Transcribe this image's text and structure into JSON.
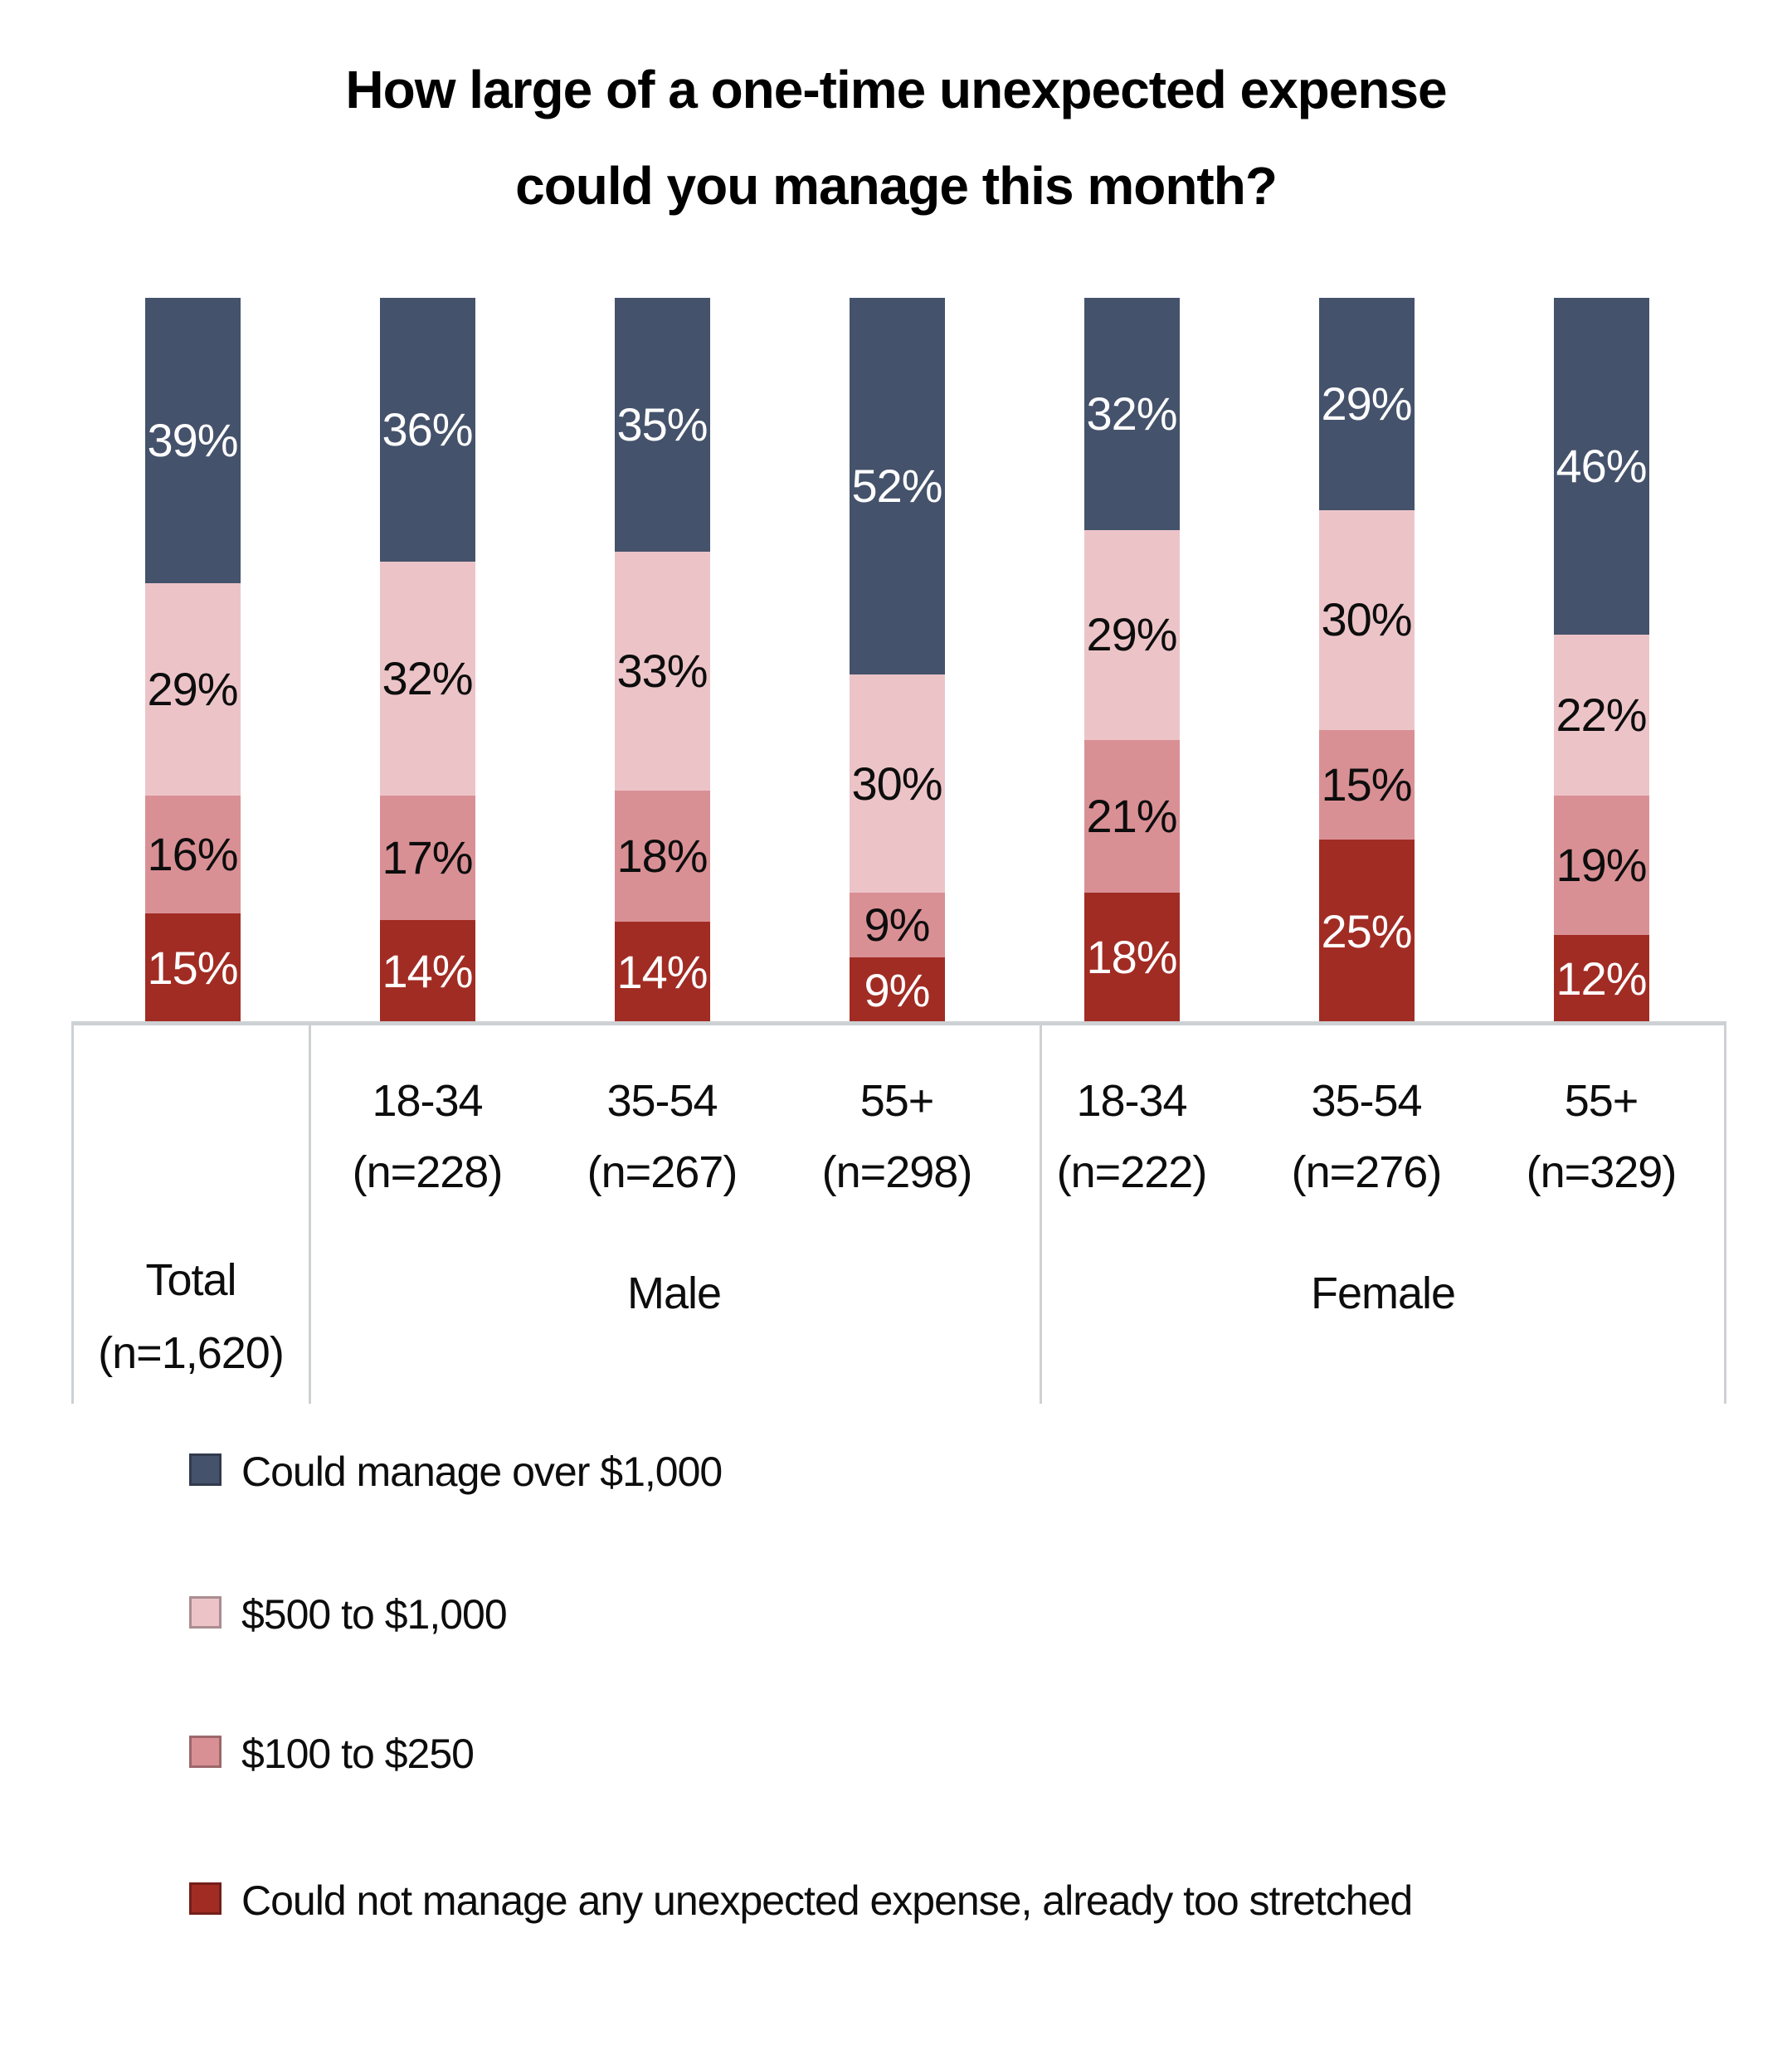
{
  "chart_data": {
    "type": "bar",
    "stacked": true,
    "title": "How large of a one-time unexpected expense could you manage this month?",
    "title_lines": [
      "How large of a one-time unexpected expense",
      "could you manage this month?"
    ],
    "value_suffix": "%",
    "ylim": [
      0,
      100
    ],
    "grid": false,
    "legend_position": "bottom-left",
    "series": [
      {
        "name": "Could manage over $1,000",
        "color": "#45526B",
        "label_color": "#FFFFFF",
        "values": [
          39,
          36,
          35,
          52,
          32,
          29,
          46
        ]
      },
      {
        "name": "$500 to $1,000",
        "color": "#ECC4C8",
        "label_color": "#0D0D0D",
        "values": [
          29,
          32,
          33,
          30,
          29,
          30,
          22
        ]
      },
      {
        "name": "$100 to $250",
        "color": "#D99095",
        "label_color": "#0D0D0D",
        "values": [
          16,
          17,
          18,
          9,
          21,
          15,
          19
        ]
      },
      {
        "name": "Could not manage any unexpected expense, already too stretched",
        "color": "#A12C24",
        "label_color": "#FFFFFF",
        "values": [
          15,
          14,
          14,
          9,
          18,
          25,
          12
        ]
      }
    ],
    "categories": [
      {
        "age_label": "",
        "n_label": "",
        "group": "Total"
      },
      {
        "age_label": "18-34",
        "n_label": "(n=228)",
        "group": "Male"
      },
      {
        "age_label": "35-54",
        "n_label": "(n=267)",
        "group": "Male"
      },
      {
        "age_label": "55+",
        "n_label": "(n=298)",
        "group": "Male"
      },
      {
        "age_label": "18-34",
        "n_label": "(n=222)",
        "group": "Female"
      },
      {
        "age_label": "35-54",
        "n_label": "(n=276)",
        "group": "Female"
      },
      {
        "age_label": "55+",
        "n_label": "(n=329)",
        "group": "Female"
      }
    ]
  },
  "axis": {
    "total_line1": "Total",
    "total_line2": "(n=1,620)",
    "male_label": "Male",
    "female_label": "Female",
    "line_color": "#CDD1D4"
  }
}
